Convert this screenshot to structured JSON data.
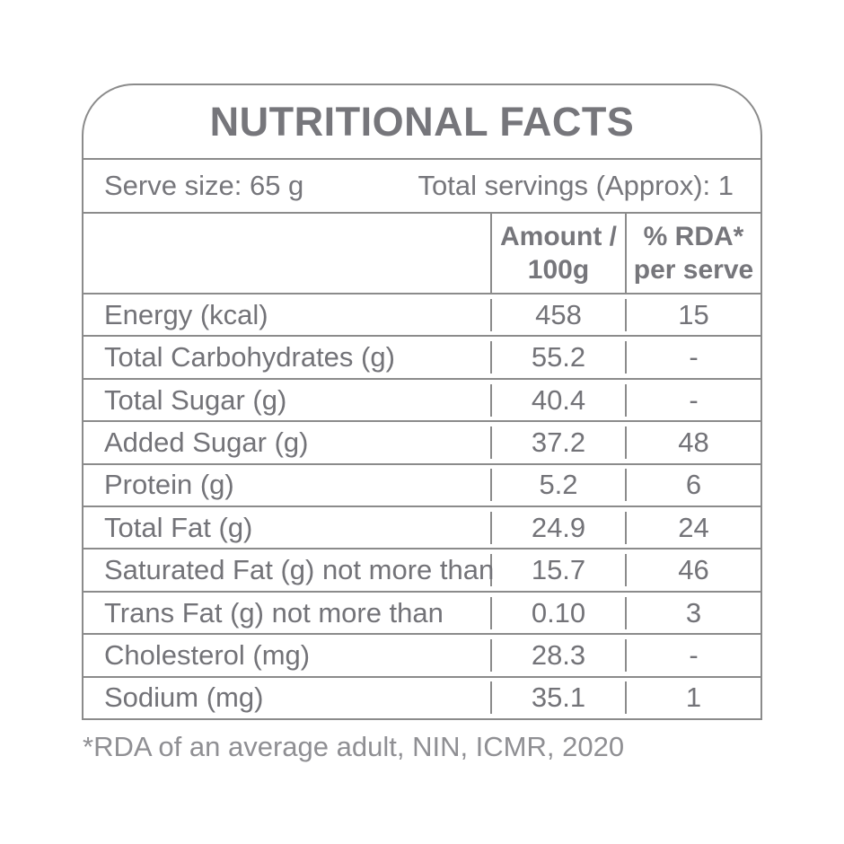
{
  "title": "NUTRITIONAL FACTS",
  "serve_info": {
    "serve_size": "Serve size: 65 g",
    "total_servings": "Total servings (Approx): 1"
  },
  "table": {
    "header": {
      "amount_line1": "Amount /",
      "amount_line2": "100g",
      "rda_line1": "% RDA*",
      "rda_line2": "per serve"
    },
    "rows": [
      {
        "label": "Energy (kcal)",
        "amount": "458",
        "rda": "15"
      },
      {
        "label": "Total Carbohydrates (g)",
        "amount": "55.2",
        "rda": "-"
      },
      {
        "label": "Total Sugar (g)",
        "amount": "40.4",
        "rda": "-"
      },
      {
        "label": "Added Sugar (g)",
        "amount": "37.2",
        "rda": "48"
      },
      {
        "label": "Protein (g)",
        "amount": "5.2",
        "rda": "6"
      },
      {
        "label": "Total Fat (g)",
        "amount": "24.9",
        "rda": "24"
      },
      {
        "label": "Saturated Fat (g) not more than",
        "amount": "15.7",
        "rda": "46"
      },
      {
        "label": "Trans Fat (g) not more than",
        "amount": "0.10",
        "rda": "3"
      },
      {
        "label": "Cholesterol (mg)",
        "amount": "28.3",
        "rda": "-"
      },
      {
        "label": "Sodium (mg)",
        "amount": "35.1",
        "rda": "1"
      }
    ]
  },
  "footnote": "*RDA of an average adult, NIN, ICMR, 2020",
  "colors": {
    "text": "#76767b",
    "border": "#8b8b8b",
    "footnote": "#8f8f93"
  }
}
